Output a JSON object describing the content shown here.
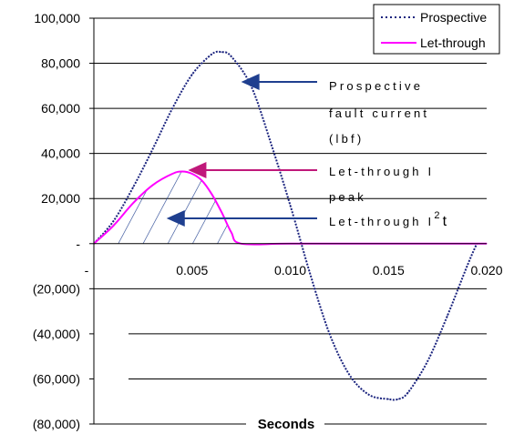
{
  "chart_data": {
    "type": "line",
    "xlabel": "Seconds",
    "ylabel": "",
    "x_ticks": [
      "-",
      "0.005",
      "0.010",
      "0.015",
      "0.020"
    ],
    "y_ticks": [
      "100,000",
      "80,000",
      "60,000",
      "40,000",
      "20,000",
      "-",
      "(20,000)",
      "(40,000)",
      "(60,000)",
      "(80,000)"
    ],
    "xlim": [
      0,
      0.02
    ],
    "ylim": [
      -80000,
      100000
    ],
    "grid": "horizontal",
    "legend_position": "top-right",
    "series": [
      {
        "name": "Prospective",
        "color": "#1a237e",
        "style": "dotted",
        "x": [
          0,
          0.001,
          0.002,
          0.003,
          0.004,
          0.005,
          0.006,
          0.0065,
          0.007,
          0.008,
          0.009,
          0.01,
          0.011,
          0.012,
          0.013,
          0.014,
          0.015,
          0.0155,
          0.016,
          0.017,
          0.018,
          0.019,
          0.0195
        ],
        "values": [
          0,
          10000,
          25000,
          42000,
          60000,
          75000,
          84000,
          85000,
          83000,
          70000,
          45000,
          17000,
          -13000,
          -40000,
          -58000,
          -67000,
          -69000,
          -69000,
          -66000,
          -52000,
          -32000,
          -10000,
          0
        ]
      },
      {
        "name": "Let-through",
        "color": "#ff00ff",
        "style": "solid",
        "x": [
          0,
          0.001,
          0.002,
          0.003,
          0.004,
          0.0045,
          0.005,
          0.0055,
          0.006,
          0.0065,
          0.007,
          0.0075,
          0.01,
          0.015,
          0.02
        ],
        "values": [
          0,
          8000,
          18000,
          26000,
          31000,
          32000,
          31000,
          28000,
          22000,
          14000,
          5000,
          0,
          0,
          0,
          0
        ]
      }
    ],
    "annotations": [
      {
        "lines": [
          "Prospective",
          "fault current",
          "(lbf)"
        ],
        "arrow_color": "#1f3f8f",
        "target": [
          0.0075,
          73000
        ]
      },
      {
        "lines": [
          "Let-through I",
          "peak"
        ],
        "arrow_color": "#c0187a",
        "target": [
          0.0048,
          32000
        ]
      },
      {
        "lines": [
          "Let-through I",
          "2",
          "t"
        ],
        "arrow_color": "#1f3f8f",
        "target": [
          0.0037,
          12000
        ]
      }
    ]
  }
}
